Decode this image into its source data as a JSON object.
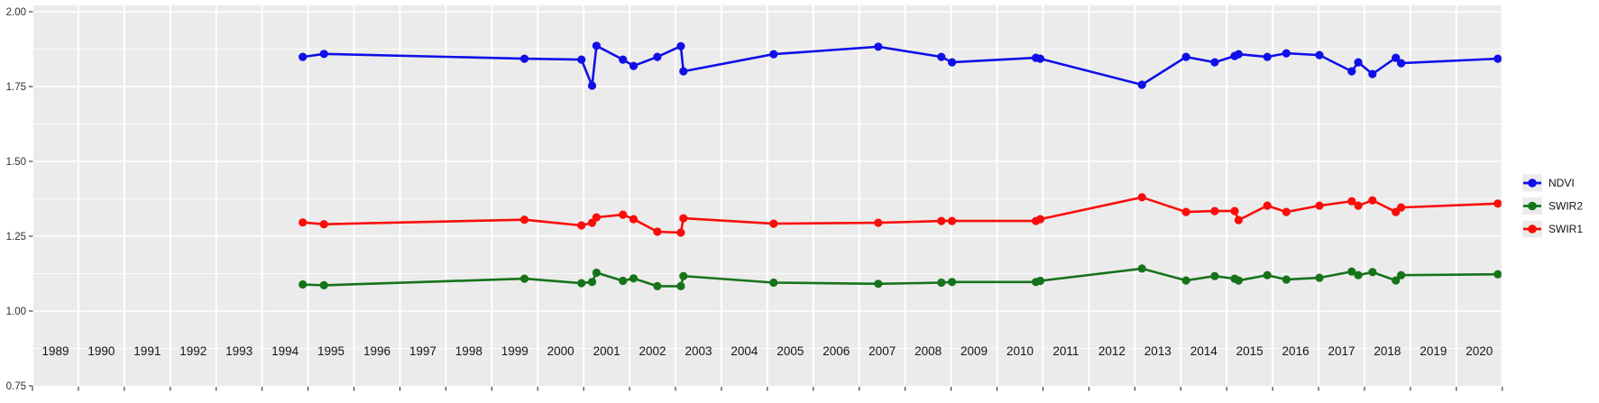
{
  "figure": {
    "kind": "ggplot-style faceted time series",
    "title": "",
    "colors": {
      "panel_bg": "#ebebeb",
      "grid": "#ffffff",
      "tick": "#333333",
      "axis_text": "#303030",
      "year_text": "#141414",
      "legend_text": "#111111",
      "legend_key_bg": "#ebebeb"
    }
  },
  "chart_data": {
    "type": "line",
    "title": "",
    "xlabel": "",
    "ylabel": "",
    "ylim": [
      0.75,
      2.0
    ],
    "grid": "on",
    "legend_position": "right",
    "y_axis": {
      "tick_labels": [
        "2.00",
        "1.75",
        "1.50",
        "1.25",
        "1.00",
        "0.75"
      ],
      "tick_values": [
        2.0,
        1.75,
        1.5,
        1.25,
        1.0,
        0.75
      ]
    },
    "x_axis": {
      "year_start": 1989,
      "year_end": 2020,
      "year_labels": [
        "1989",
        "1990",
        "1991",
        "1992",
        "1993",
        "1994",
        "1995",
        "1996",
        "1997",
        "1998",
        "1999",
        "2000",
        "2001",
        "2002",
        "2003",
        "2004",
        "2005",
        "2006",
        "2007",
        "2008",
        "2009",
        "2010",
        "2011",
        "2012",
        "2013",
        "2014",
        "2015",
        "2016",
        "2017",
        "2018",
        "2019",
        "2020"
      ]
    },
    "x": [
      1994.9,
      1995.34,
      1999.72,
      2000.97,
      2001.17,
      2001.27,
      2001.87,
      2002.07,
      2002.61,
      2003.1,
      2003.16,
      2005.12,
      2007.41,
      2008.8,
      2009.0,
      2010.86,
      2010.96,
      2013.14,
      2014.1,
      2014.75,
      2015.16,
      2015.25,
      2015.9,
      2016.29,
      2017.0,
      2017.73,
      2017.88,
      2018.16,
      2018.69,
      2018.81,
      2020.92
    ],
    "series": [
      {
        "name": "NDVI",
        "color": "#0f0fe8",
        "values": [
          1.849,
          1.859,
          1.843,
          1.84,
          1.753,
          1.886,
          1.84,
          1.819,
          1.849,
          1.885,
          1.801,
          1.858,
          1.883,
          1.849,
          1.831,
          1.846,
          1.843,
          1.756,
          1.849,
          1.831,
          1.852,
          1.858,
          1.849,
          1.861,
          1.855,
          1.801,
          1.831,
          1.792,
          1.846,
          1.828,
          1.843
        ]
      },
      {
        "name": "SWIR2",
        "color": "#15731a",
        "values": [
          1.089,
          1.086,
          1.108,
          1.093,
          1.097,
          1.128,
          1.101,
          1.109,
          1.083,
          1.083,
          1.117,
          1.095,
          1.091,
          1.095,
          1.097,
          1.097,
          1.101,
          1.142,
          1.102,
          1.117,
          1.108,
          1.102,
          1.12,
          1.105,
          1.111,
          1.132,
          1.12,
          1.13,
          1.102,
          1.12,
          1.123
        ]
      },
      {
        "name": "SWIR1",
        "color": "#f90d0b",
        "values": [
          1.296,
          1.29,
          1.305,
          1.286,
          1.295,
          1.313,
          1.322,
          1.307,
          1.265,
          1.262,
          1.31,
          1.292,
          1.295,
          1.301,
          1.301,
          1.301,
          1.307,
          1.38,
          1.331,
          1.334,
          1.334,
          1.304,
          1.352,
          1.331,
          1.352,
          1.367,
          1.352,
          1.37,
          1.331,
          1.346,
          1.359
        ]
      }
    ],
    "legend_entries": [
      "NDVI",
      "SWIR2",
      "SWIR1"
    ]
  }
}
